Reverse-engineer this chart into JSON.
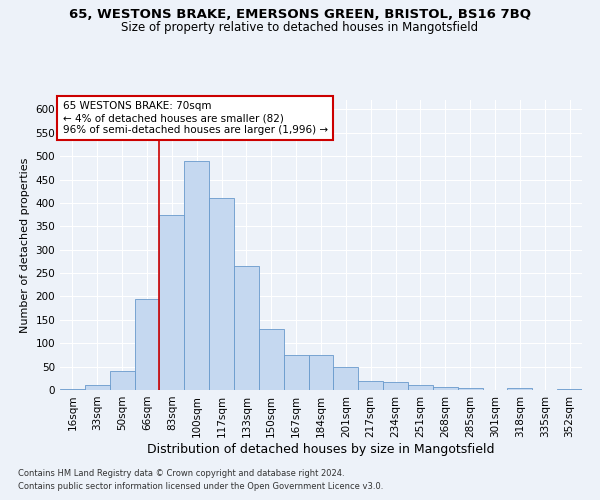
{
  "title1": "65, WESTONS BRAKE, EMERSONS GREEN, BRISTOL, BS16 7BQ",
  "title2": "Size of property relative to detached houses in Mangotsfield",
  "xlabel": "Distribution of detached houses by size in Mangotsfield",
  "ylabel": "Number of detached properties",
  "bin_labels": [
    "16sqm",
    "33sqm",
    "50sqm",
    "66sqm",
    "83sqm",
    "100sqm",
    "117sqm",
    "133sqm",
    "150sqm",
    "167sqm",
    "184sqm",
    "201sqm",
    "217sqm",
    "234sqm",
    "251sqm",
    "268sqm",
    "285sqm",
    "301sqm",
    "318sqm",
    "335sqm",
    "352sqm"
  ],
  "bar_values": [
    3,
    10,
    40,
    195,
    375,
    490,
    410,
    265,
    130,
    74,
    74,
    49,
    20,
    18,
    10,
    7,
    5,
    0,
    5,
    0,
    2
  ],
  "bar_color": "#c5d8f0",
  "bar_edge_color": "#6899cc",
  "vline_x_idx": 3.5,
  "vline_color": "#cc0000",
  "annotation_text": "65 WESTONS BRAKE: 70sqm\n← 4% of detached houses are smaller (82)\n96% of semi-detached houses are larger (1,996) →",
  "annotation_box_facecolor": "#ffffff",
  "annotation_box_edgecolor": "#cc0000",
  "ylim": [
    0,
    620
  ],
  "yticks": [
    0,
    50,
    100,
    150,
    200,
    250,
    300,
    350,
    400,
    450,
    500,
    550,
    600
  ],
  "background_color": "#edf2f9",
  "grid_color": "#ffffff",
  "title1_fontsize": 9.5,
  "title2_fontsize": 8.5,
  "xlabel_fontsize": 9,
  "ylabel_fontsize": 8,
  "tick_fontsize": 7.5,
  "annotation_fontsize": 7.5,
  "footnote1": "Contains HM Land Registry data © Crown copyright and database right 2024.",
  "footnote2": "Contains public sector information licensed under the Open Government Licence v3.0.",
  "footnote_fontsize": 6
}
